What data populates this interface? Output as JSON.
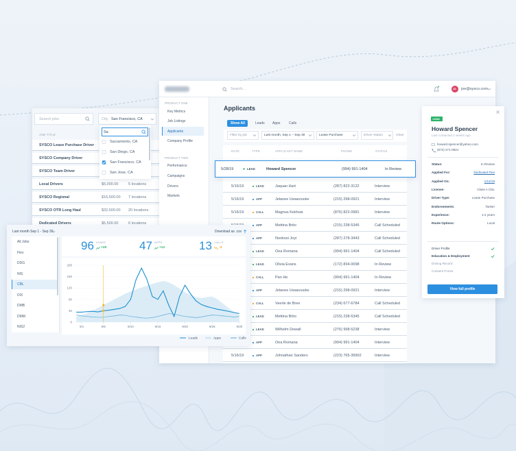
{
  "jobs_panel": {
    "search_placeholder": "Search jobs",
    "city_label": "City",
    "city_value": "San Francisco, CA",
    "city_search": "Sa",
    "city_options": [
      {
        "label": "Sacramento, CA",
        "checked": false
      },
      {
        "label": "San Diego, CA",
        "checked": false
      },
      {
        "label": "San Francisco, CA",
        "checked": true
      },
      {
        "label": "San Jose, CA",
        "checked": false
      }
    ],
    "column": "JOB TITLE",
    "rows": [
      {
        "title": "SYSCO Lease Purchase Driver"
      },
      {
        "title": "SYSCO Company Driver"
      },
      {
        "title": "SYSCO Team Driver"
      },
      {
        "title": "Local Drivers",
        "pay": "$5,000.00",
        "locations": "5 locations"
      },
      {
        "title": "SYSCO Regional",
        "pay": "$16,500.00",
        "locations": "7 locations"
      },
      {
        "title": "SYSCO OTR Long Haul",
        "pay": "$32,500.00",
        "locations": "20 locations"
      },
      {
        "title": "Dedicated Drivers",
        "pay": "$5,500.00",
        "locations": "6 locations"
      }
    ]
  },
  "app": {
    "search_placeholder": "Search...",
    "user_initials": "JS",
    "user_email": "joe@sysco.com",
    "sidebar": [
      {
        "heading": "PRODUCT ONE",
        "items": [
          "Key Metrics",
          "Job Listings",
          "Applicants",
          "Company Profile"
        ],
        "active": 2
      },
      {
        "heading": "PRODUCT TWO",
        "items": [
          "Performance",
          "Campaigns",
          "Drivers",
          "Markets"
        ]
      }
    ],
    "page_title": "Applicants",
    "tabs": [
      "Show All",
      "Leads",
      "Apps",
      "Calls"
    ],
    "active_tab": 0,
    "filters": [
      "Filter by job",
      "Last month, Sep 1 – Sep 30",
      "Lease Purchase",
      "Driver Status"
    ],
    "clear": "Clear",
    "columns": [
      "DATE",
      "TYPE",
      "APPLICANT NAME",
      "PHONE",
      "STATUS"
    ],
    "type_colors": {
      "LEAD": "#2cb46a",
      "APP": "#2d8fe0",
      "CALL": "#f3a31f"
    },
    "selected_row": 0,
    "rows": [
      [
        "5/28/19",
        "LEAD",
        "Howard Spencer",
        "(994) 991-1404",
        "In Review"
      ],
      [
        "5/16/19",
        "LEAD",
        "Jaquan Hart",
        "(287) 822-3122",
        "Interview"
      ],
      [
        "5/16/19",
        "APP",
        "Jelanee Uwaezuoke",
        "(215) 298-0921",
        "Interview"
      ],
      [
        "5/16/19",
        "CALL",
        "Magnus Kekhuis",
        "(876) 822-0981",
        "Interview"
      ],
      [
        "5/16/19",
        "APP",
        "Mettina Brito",
        "(215) 238-5345",
        "Call Scheduled"
      ],
      [
        "5/16/19",
        "APP",
        "Nonkosi Joyi",
        "(287) 278-3443",
        "Call Scheduled"
      ],
      [
        "5/16/19",
        "LEAD",
        "Oea Romana",
        "(994) 991-1404",
        "Call Scheduled"
      ],
      [
        "5/16/19",
        "LEAD",
        "Olivia Evans",
        "(172) 834-0098",
        "In Review"
      ],
      [
        "5/16/19",
        "CALL",
        "Pan He",
        "(994) 991-1404",
        "In Review"
      ],
      [
        "5/16/19",
        "APP",
        "Jelanee Uwaezuoke",
        "(215) 298-0921",
        "Interview"
      ],
      [
        "5/16/19",
        "CALL",
        "Veerle de Bree",
        "(234) 677-6784",
        "Call Scheduled"
      ],
      [
        "5/16/19",
        "LEAD",
        "Mettina Brito",
        "(215) 238-5345",
        "Call Scheduled"
      ],
      [
        "5/16/19",
        "LEAD",
        "Wilhelm Dowall",
        "(276) 998-5238",
        "Interview"
      ],
      [
        "5/16/19",
        "APP",
        "Oea Romana",
        "(994) 991-1404",
        "Interview"
      ],
      [
        "5/16/19",
        "APP",
        "Johnathan Sanders",
        "(223) 765-39902",
        "Interview"
      ]
    ]
  },
  "detail": {
    "badge": "LEAD",
    "name": "Howard Spencer",
    "last_contacted": "Last contacted 2 weeks ago",
    "email": "howard.spencer@yahoo.com",
    "phone": "(872) 271-0821",
    "fields": [
      {
        "label": "Status:",
        "value": "In Review"
      },
      {
        "label": "Applied For:",
        "value": "Dedicated Flex",
        "link": true
      },
      {
        "label": "Applied On:",
        "value": "1/12/19",
        "link": true
      },
      {
        "label": "License:",
        "value": "Class A CDL"
      },
      {
        "label": "Driver Type:",
        "value": "Lease Purchase"
      },
      {
        "label": "Endorsements:",
        "value": "Tanker"
      },
      {
        "label": "Experience:",
        "value": "1-2 years"
      },
      {
        "label": "Route Options:",
        "value": "Local"
      }
    ],
    "checklist": [
      {
        "label": "Driver Profile",
        "done": true
      },
      {
        "label": "Education & Employment",
        "done": true
      },
      {
        "label": "Driving Record",
        "done": false
      },
      {
        "label": "Consent Forms",
        "done": false
      }
    ],
    "button": "View full profile"
  },
  "metrics": {
    "period": "Last month Sep 1 - Sep 30",
    "download": "Download as .csv",
    "jobs": [
      "All Jobs",
      "Flex",
      "DDG",
      "NIS",
      "CBL",
      "DIX",
      "DMB",
      "DMM",
      "NIS2"
    ],
    "active_job": 4,
    "stats": [
      {
        "value": 96,
        "label": "LEADS",
        "change": "+28",
        "color": "#2cb46a"
      },
      {
        "value": 47,
        "label": "APPS",
        "change": "+12",
        "color": "#2cb46a"
      },
      {
        "value": 13,
        "label": "CALLS",
        "change": "-3",
        "color": "#f3a31f"
      }
    ],
    "chart": {
      "type": "line",
      "x": [
        0,
        1,
        2,
        3,
        4,
        5,
        6,
        7,
        8,
        9,
        10,
        11,
        12,
        13,
        14,
        15,
        16,
        17,
        18,
        19,
        20,
        21,
        22,
        23,
        24,
        25,
        26,
        27,
        28,
        29,
        30
      ],
      "xlim": [
        -0.4,
        30.4
      ],
      "xticks": [
        {
          "value": 1,
          "label": "9/1"
        },
        {
          "value": 5,
          "label": "9/5"
        },
        {
          "value": 10,
          "label": "9/10"
        },
        {
          "value": 15,
          "label": "9/15"
        },
        {
          "value": 20,
          "label": "9/20"
        },
        {
          "value": 25,
          "label": "9/25"
        },
        {
          "value": 30,
          "label": "9/30"
        }
      ],
      "ylim": [
        0,
        200
      ],
      "yticks": [
        0,
        40,
        80,
        120,
        160,
        200
      ],
      "grid": true,
      "marker_index": 5,
      "marker_color": "#f2b632",
      "series": [
        {
          "name": "Leads",
          "color": "#1b8fd0",
          "values": [
            35,
            35,
            37,
            38,
            36,
            40,
            42,
            45,
            48,
            55,
            80,
            150,
            190,
            150,
            90,
            80,
            110,
            60,
            20,
            90,
            130,
            100,
            75,
            62,
            55,
            50,
            45,
            42,
            38,
            34,
            30
          ]
        },
        {
          "name": "Apps",
          "color": "#cfe5f3",
          "area": true,
          "values": [
            20,
            25,
            32,
            40,
            50,
            60,
            70,
            80,
            90,
            100,
            108,
            115,
            122,
            128,
            135,
            140,
            145,
            140,
            130,
            118,
            105,
            95,
            88,
            85,
            88,
            90,
            80,
            65,
            50,
            35,
            25
          ]
        },
        {
          "name": "Calls",
          "color": "#5aa9d9",
          "values": [
            25,
            22,
            20,
            18,
            17,
            17,
            20,
            22,
            25,
            24,
            20,
            18,
            15,
            14,
            16,
            20,
            25,
            30,
            28,
            24,
            20,
            18,
            16,
            18,
            22,
            25,
            24,
            22,
            20,
            18,
            20
          ]
        }
      ]
    }
  }
}
